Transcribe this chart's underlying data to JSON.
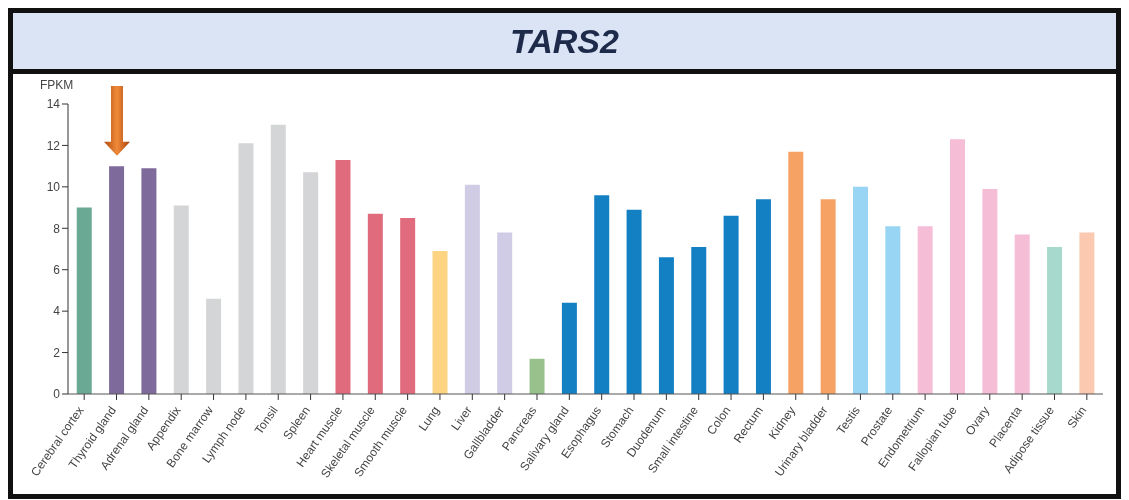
{
  "chart_data": {
    "type": "bar",
    "title": "TARS2",
    "ylabel": "FPKM",
    "categories": [
      "Cerebral cortex",
      "Thyroid gland",
      "Adrenal gland",
      "Appendix",
      "Bone marrow",
      "Lymph node",
      "Tonsil",
      "Spleen",
      "Heart muscle",
      "Skeletal muscle",
      "Smooth muscle",
      "Lung",
      "Liver",
      "Gallbladder",
      "Pancreas",
      "Salivary gland",
      "Esophagus",
      "Stomach",
      "Duodenum",
      "Small intestine",
      "Colon",
      "Rectum",
      "Kidney",
      "Urinary bladder",
      "Testis",
      "Prostate",
      "Endometrium",
      "Fallopian tube",
      "Ovary",
      "Placenta",
      "Adipose tissue",
      "Skin"
    ],
    "values": [
      9.0,
      11.0,
      10.9,
      9.1,
      4.6,
      12.1,
      13.0,
      10.7,
      11.3,
      8.7,
      8.5,
      6.9,
      10.1,
      7.8,
      1.7,
      4.4,
      9.6,
      8.9,
      6.6,
      7.1,
      8.6,
      9.4,
      11.7,
      9.4,
      10.0,
      8.1,
      8.1,
      12.3,
      9.9,
      7.7,
      7.1,
      7.8
    ],
    "colors": [
      "#6aa993",
      "#7e6b9c",
      "#7e6b9c",
      "#d4d5d7",
      "#d4d5d7",
      "#d4d5d7",
      "#d4d5d7",
      "#d4d5d7",
      "#e06b7c",
      "#e06b7c",
      "#e06b7c",
      "#fdd482",
      "#d0cce6",
      "#d0cce6",
      "#98c18c",
      "#1380c4",
      "#1380c4",
      "#1380c4",
      "#1380c4",
      "#1380c4",
      "#1380c4",
      "#1380c4",
      "#f6a264",
      "#f6a264",
      "#98d4f3",
      "#98d4f3",
      "#f6bdd7",
      "#f6bdd7",
      "#f6bdd7",
      "#f6bdd7",
      "#a7dacd",
      "#fbc8b0"
    ],
    "ylim": [
      0,
      14
    ],
    "yticks": [
      0,
      2,
      4,
      6,
      8,
      10,
      12,
      14
    ]
  }
}
